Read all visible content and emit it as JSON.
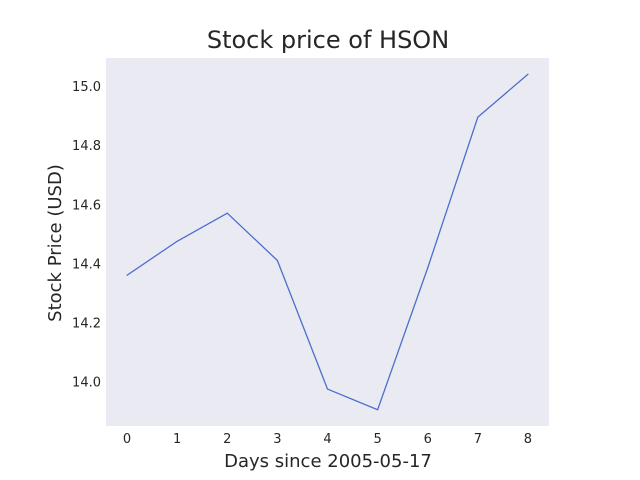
{
  "chart_data": {
    "type": "line",
    "title": "Stock price of HSON",
    "xlabel": "Days since 2005-05-17",
    "ylabel": "Stock Price (USD)",
    "x": [
      0,
      1,
      2,
      3,
      4,
      5,
      6,
      7,
      8
    ],
    "series": [
      {
        "values": [
          14.36,
          14.475,
          14.57,
          14.41,
          13.975,
          13.905,
          14.385,
          14.895,
          15.04
        ]
      }
    ],
    "xlim": [
      -0.42,
      8.42
    ],
    "ylim": [
      13.85,
      15.095
    ],
    "xticks": [
      "0",
      "1",
      "2",
      "3",
      "4",
      "5",
      "6",
      "7",
      "8"
    ],
    "yticks": [
      "14.0",
      "14.2",
      "14.4",
      "14.6",
      "14.8",
      "15.0"
    ],
    "grid": false,
    "colors": {
      "line": "#4c6ecc",
      "plot_background": "#eaeaf2",
      "text": "#262626"
    }
  }
}
